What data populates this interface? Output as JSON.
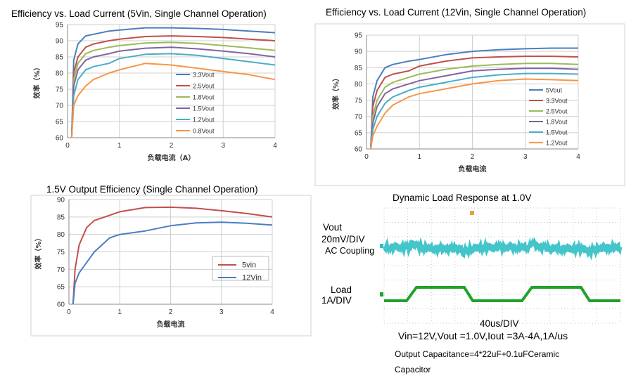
{
  "chart_data": [
    {
      "type": "line",
      "title": "Efficiency vs. Load Current (5Vin, Single Channel Operation)",
      "xlabel": "负载电流（A）",
      "ylabel": "效率（%）",
      "xlim": [
        0,
        4
      ],
      "ylim": [
        60,
        95
      ],
      "xticks": [
        "0",
        "1",
        "2",
        "3",
        "4"
      ],
      "yticks": [
        "60",
        "65",
        "70",
        "75",
        "80",
        "85",
        "90",
        "95"
      ],
      "grid": true,
      "legend": "center",
      "series": [
        {
          "name": "3.3Vout",
          "color": "#4a7ec0",
          "x": [
            0.08,
            0.12,
            0.2,
            0.35,
            0.5,
            0.8,
            1.0,
            1.5,
            2.0,
            2.5,
            3.0,
            3.5,
            4.0
          ],
          "y": [
            60,
            84,
            89,
            91.5,
            92,
            93,
            93.3,
            94,
            94,
            93.8,
            93.5,
            93,
            92.5
          ]
        },
        {
          "name": "2.5Vout",
          "color": "#c0504d",
          "x": [
            0.08,
            0.12,
            0.2,
            0.35,
            0.5,
            0.8,
            1.0,
            1.5,
            2.0,
            2.5,
            3.0,
            3.5,
            4.0
          ],
          "y": [
            60,
            80,
            85,
            88,
            89,
            90,
            90.5,
            91.3,
            91.5,
            91.3,
            91,
            90.5,
            90
          ]
        },
        {
          "name": "1.8Vout",
          "color": "#9bbb59",
          "x": [
            0.08,
            0.12,
            0.2,
            0.35,
            0.5,
            0.8,
            1.0,
            1.5,
            2.0,
            2.5,
            3.0,
            3.5,
            4.0
          ],
          "y": [
            60,
            78,
            83,
            86,
            87,
            88,
            88.5,
            89.3,
            89.5,
            89.2,
            88.5,
            87.8,
            87
          ]
        },
        {
          "name": "1.5Vout",
          "color": "#8064a2",
          "x": [
            0.08,
            0.12,
            0.2,
            0.35,
            0.5,
            0.8,
            1.0,
            1.5,
            2.0,
            2.5,
            3.0,
            3.5,
            4.0
          ],
          "y": [
            60,
            76,
            81,
            84,
            85,
            86,
            86.8,
            87.7,
            88,
            87.5,
            86.8,
            86,
            85
          ]
        },
        {
          "name": "1.2Vout",
          "color": "#4bacc6",
          "x": [
            0.08,
            0.12,
            0.2,
            0.35,
            0.5,
            0.8,
            1.0,
            1.5,
            2.0,
            2.5,
            3.0,
            3.5,
            4.0
          ],
          "y": [
            60,
            73,
            78,
            81,
            82,
            83,
            84.5,
            85.8,
            86,
            85.5,
            84.5,
            83.5,
            82.5
          ]
        },
        {
          "name": "0.8Vout",
          "color": "#f79646",
          "x": [
            0.08,
            0.12,
            0.2,
            0.35,
            0.5,
            0.8,
            1.0,
            1.5,
            2.0,
            2.5,
            3.0,
            3.5,
            4.0
          ],
          "y": [
            60,
            70,
            73,
            76,
            78,
            80,
            81,
            83,
            82.5,
            81.5,
            80.5,
            79.5,
            78
          ]
        }
      ]
    },
    {
      "type": "line",
      "title": "Efficiency vs. Load Current (12Vin, Single Channel Operation)",
      "xlabel": "负载电流",
      "ylabel": "效率（%）",
      "xlim": [
        0,
        4
      ],
      "ylim": [
        60,
        95
      ],
      "xticks": [
        "0",
        "1",
        "2",
        "3",
        "4"
      ],
      "yticks": [
        "60",
        "65",
        "70",
        "75",
        "80",
        "85",
        "90",
        "95"
      ],
      "grid": true,
      "legend": "right",
      "series": [
        {
          "name": "5Vout",
          "color": "#4a7ec0",
          "x": [
            0.08,
            0.12,
            0.2,
            0.35,
            0.5,
            0.8,
            1.0,
            1.5,
            2.0,
            2.5,
            3.0,
            3.5,
            4.0
          ],
          "y": [
            60,
            76,
            81,
            85,
            86,
            87,
            87.5,
            89,
            90,
            90.5,
            90.8,
            91,
            91
          ]
        },
        {
          "name": "3.3Vout",
          "color": "#c0504d",
          "x": [
            0.08,
            0.12,
            0.2,
            0.35,
            0.5,
            0.8,
            1.0,
            1.5,
            2.0,
            2.5,
            3.0,
            3.5,
            4.0
          ],
          "y": [
            60,
            73,
            78,
            82,
            83,
            84,
            85.5,
            87,
            88,
            88.3,
            88.5,
            88.5,
            88.3
          ]
        },
        {
          "name": "2.5Vout",
          "color": "#9bbb59",
          "x": [
            0.08,
            0.12,
            0.2,
            0.35,
            0.5,
            0.8,
            1.0,
            1.5,
            2.0,
            2.5,
            3.0,
            3.5,
            4.0
          ],
          "y": [
            60,
            70,
            75,
            79,
            80.5,
            82,
            83,
            84.5,
            85.5,
            86,
            86.3,
            86.3,
            86
          ]
        },
        {
          "name": "1.8Vout",
          "color": "#8064a2",
          "x": [
            0.08,
            0.12,
            0.2,
            0.35,
            0.5,
            0.8,
            1.0,
            1.5,
            2.0,
            2.5,
            3.0,
            3.5,
            4.0
          ],
          "y": [
            60,
            68,
            73,
            77,
            78.5,
            80,
            81,
            82.5,
            84,
            84.5,
            84.8,
            84.8,
            84.5
          ]
        },
        {
          "name": "1.5Vout",
          "color": "#4bacc6",
          "x": [
            0.08,
            0.12,
            0.2,
            0.35,
            0.5,
            0.8,
            1.0,
            1.5,
            2.0,
            2.5,
            3.0,
            3.5,
            4.0
          ],
          "y": [
            60,
            66,
            70,
            74,
            76,
            78,
            79,
            80.5,
            82,
            82.8,
            83.2,
            83.2,
            83
          ]
        },
        {
          "name": "1.2Vout",
          "color": "#f79646",
          "x": [
            0.08,
            0.12,
            0.2,
            0.35,
            0.5,
            0.8,
            1.0,
            1.5,
            2.0,
            2.5,
            3.0,
            3.5,
            4.0
          ],
          "y": [
            60,
            64,
            67,
            71,
            73.5,
            76,
            77,
            78.5,
            80,
            81,
            81.5,
            81.3,
            81
          ]
        }
      ]
    },
    {
      "type": "line",
      "title": "1.5V Output Efficiency (Single Channel Operation)",
      "xlabel": "负载电流",
      "ylabel": "效率（%）",
      "xlim": [
        0,
        4
      ],
      "ylim": [
        60,
        90
      ],
      "xticks": [
        "0",
        "1",
        "2",
        "3",
        "4"
      ],
      "yticks": [
        "60",
        "65",
        "70",
        "75",
        "80",
        "85",
        "90"
      ],
      "grid": true,
      "legend": "bottom-right",
      "series": [
        {
          "name": "5vin",
          "color": "#c0504d",
          "x": [
            0.08,
            0.12,
            0.2,
            0.35,
            0.5,
            0.8,
            1.0,
            1.5,
            2.0,
            2.5,
            3.0,
            3.5,
            4.0
          ],
          "y": [
            60,
            70,
            77,
            82,
            84,
            85.5,
            86.5,
            87.7,
            87.8,
            87.5,
            86.8,
            86,
            85
          ]
        },
        {
          "name": "12Vin",
          "color": "#4a7ec0",
          "x": [
            0.08,
            0.12,
            0.2,
            0.35,
            0.5,
            0.8,
            1.0,
            1.5,
            2.0,
            2.5,
            3.0,
            3.5,
            4.0
          ],
          "y": [
            60,
            66,
            69,
            72,
            75,
            79,
            80,
            81,
            82.5,
            83.3,
            83.5,
            83.2,
            82.7
          ]
        }
      ]
    }
  ],
  "scope": {
    "title": "Dynamic Load Response at 1.0V",
    "ch1_label_1": "Vout",
    "ch1_label_2": "20mV/DIV",
    "ch1_label_3": "AC Coupling",
    "ch2_label_1": "Load",
    "ch2_label_2": "1A/DIV",
    "timebase": "40us/DIV",
    "conditions": "Vin=12V,Vout =1.0V,Iout =3A-4A,1A/us",
    "caption_1": "Output Capacitance=4*22uF+0.1uFCeramic",
    "caption_2": "Capacitor",
    "trace1_color": "#2fbfc4",
    "trace2_color": "#1fa32a",
    "screen_color": "#ffffff"
  }
}
